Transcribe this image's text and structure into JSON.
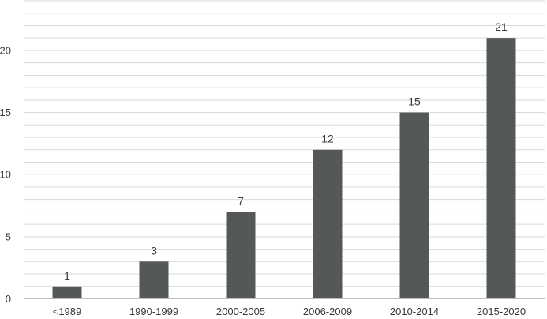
{
  "chart_data": {
    "type": "bar",
    "title": "",
    "xlabel": "",
    "ylabel": "",
    "categories": [
      "<1989",
      "1990-1999",
      "2000-2005",
      "2006-2009",
      "2010-2014",
      "2015-2020"
    ],
    "values": [
      1,
      3,
      7,
      12,
      15,
      21
    ],
    "data_labels": [
      "1",
      "3",
      "7",
      "12",
      "15",
      "21"
    ],
    "ylim": [
      0,
      24
    ],
    "y_ticks": [
      0,
      5,
      10,
      15,
      20
    ],
    "y_tick_labels": [
      "0",
      "5",
      "10",
      "15",
      "20"
    ],
    "minor_grid_step": 1,
    "grid": true,
    "legend": "none",
    "bar_color": "#555858",
    "grid_color": "#d9d9d9"
  }
}
